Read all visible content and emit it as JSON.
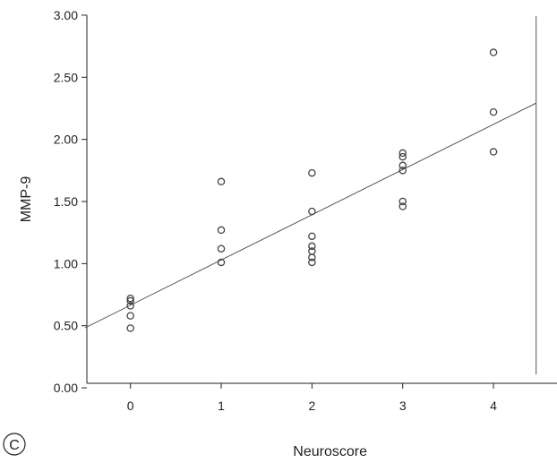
{
  "chart_data": {
    "type": "scatter",
    "title": "",
    "xlabel": "Neuroscore",
    "ylabel": "MMP-9",
    "panel_label": "C",
    "xlim": [
      -0.5,
      4.7
    ],
    "ylim": [
      -0.05,
      3.05
    ],
    "x_ticks": [
      0,
      1,
      2,
      3,
      4
    ],
    "y_ticks": [
      0.0,
      0.5,
      1.0,
      1.5,
      2.0,
      2.5,
      3.0
    ],
    "x_tick_labels": [
      "0",
      "1",
      "2",
      "3",
      "4"
    ],
    "y_tick_labels": [
      "0.00",
      "0.50",
      "1.00",
      "1.50",
      "2.00",
      "2.50",
      "3.00"
    ],
    "grid": false,
    "reference_line_x": 4.47,
    "fit_line": {
      "slope": 0.364,
      "intercept": 0.665
    },
    "points": [
      {
        "x": 0,
        "y": 0.72
      },
      {
        "x": 0,
        "y": 0.7
      },
      {
        "x": 0,
        "y": 0.66
      },
      {
        "x": 0,
        "y": 0.58
      },
      {
        "x": 0,
        "y": 0.48
      },
      {
        "x": 1,
        "y": 1.66
      },
      {
        "x": 1,
        "y": 1.27
      },
      {
        "x": 1,
        "y": 1.12
      },
      {
        "x": 1,
        "y": 1.01
      },
      {
        "x": 2,
        "y": 1.73
      },
      {
        "x": 2,
        "y": 1.42
      },
      {
        "x": 2,
        "y": 1.22
      },
      {
        "x": 2,
        "y": 1.14
      },
      {
        "x": 2,
        "y": 1.1
      },
      {
        "x": 2,
        "y": 1.05
      },
      {
        "x": 2,
        "y": 1.01
      },
      {
        "x": 3,
        "y": 1.89
      },
      {
        "x": 3,
        "y": 1.86
      },
      {
        "x": 3,
        "y": 1.79
      },
      {
        "x": 3,
        "y": 1.75
      },
      {
        "x": 3,
        "y": 1.5
      },
      {
        "x": 3,
        "y": 1.46
      },
      {
        "x": 4,
        "y": 2.7
      },
      {
        "x": 4,
        "y": 2.22
      },
      {
        "x": 4,
        "y": 1.9
      }
    ],
    "colors": {
      "marker": "#444444",
      "line": "#555555",
      "axis": "#222222"
    }
  }
}
